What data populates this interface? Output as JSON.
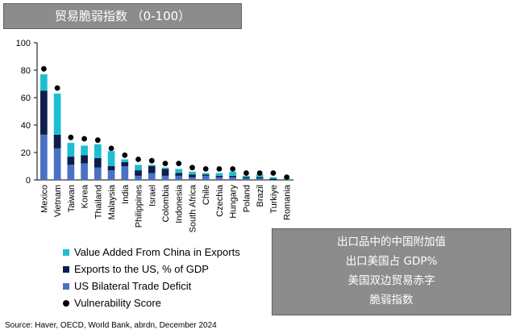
{
  "title": "贸易脆弱指数 （0-100）",
  "source": "Source: Haver, OECD, World Bank, abrdn, December 2024",
  "annotation": [
    "出口品中的中国附加值",
    "出口美国占 GDP%",
    "美国双边贸易赤字",
    "脆弱指数"
  ],
  "colors": {
    "value_added": "#1ebed2",
    "exports": "#0f1d4a",
    "deficit": "#4a72c4",
    "score": "#000000"
  },
  "chart_data": {
    "type": "bar",
    "stacked": true,
    "title": "贸易脆弱指数 （0-100）",
    "categories": [
      "Mexico",
      "Vietnam",
      "Taiwan",
      "Korea",
      "Thailand",
      "Malaysia",
      "India",
      "Philippines",
      "Israel",
      "Colombia",
      "Indonesia",
      "South Africa",
      "Chile",
      "Czechia",
      "Hungary",
      "Poland",
      "Brazil",
      "Turkiye",
      "Romania"
    ],
    "ylim": [
      0,
      100
    ],
    "yticks": [
      0,
      20,
      40,
      60,
      80,
      100
    ],
    "legend_position": "bottom-left",
    "series": [
      {
        "name": "Value Added From China in Exports",
        "kind": "bar",
        "values": [
          12,
          30,
          10,
          7,
          10,
          11,
          2,
          4,
          1,
          1,
          3,
          2,
          1,
          2,
          3,
          1,
          2,
          1,
          1
        ]
      },
      {
        "name": "Exports to the US, % of GDP",
        "kind": "bar",
        "values": [
          32,
          10,
          6,
          6,
          7,
          3,
          3,
          4,
          5,
          5,
          2,
          2,
          1,
          1,
          1,
          1,
          1,
          1,
          0
        ]
      },
      {
        "name": "US Bilateral Trade Deficit",
        "kind": "bar",
        "values": [
          33,
          23,
          11,
          12,
          9,
          7,
          10,
          3,
          5,
          3,
          3,
          2,
          3,
          2,
          2,
          1,
          1,
          0,
          0
        ]
      },
      {
        "name": "Vulnerability Score",
        "kind": "point",
        "values": [
          81,
          67,
          31,
          30,
          29,
          23,
          18,
          15,
          14,
          12,
          12,
          9,
          8,
          8,
          8,
          5,
          5,
          5,
          2
        ]
      }
    ]
  }
}
